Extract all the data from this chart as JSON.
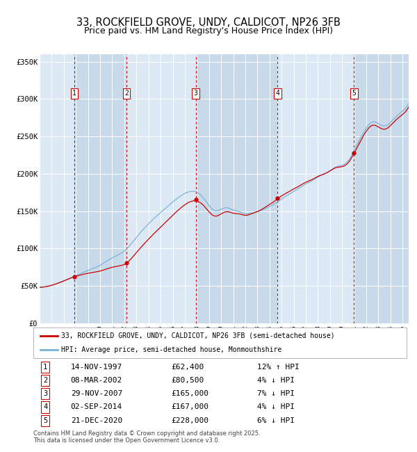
{
  "title": "33, ROCKFIELD GROVE, UNDY, CALDICOT, NP26 3FB",
  "subtitle": "Price paid vs. HM Land Registry's House Price Index (HPI)",
  "legend_red": "33, ROCKFIELD GROVE, UNDY, CALDICOT, NP26 3FB (semi-detached house)",
  "legend_blue": "HPI: Average price, semi-detached house, Monmouthshire",
  "footer": "Contains HM Land Registry data © Crown copyright and database right 2025.\nThis data is licensed under the Open Government Licence v3.0.",
  "transactions": [
    {
      "num": 1,
      "date": "14-NOV-1997",
      "price": 62400,
      "pct": "12%",
      "dir": "↑",
      "year": 1997.87
    },
    {
      "num": 2,
      "date": "08-MAR-2002",
      "price": 80500,
      "pct": "4%",
      "dir": "↓",
      "year": 2002.18
    },
    {
      "num": 3,
      "date": "29-NOV-2007",
      "price": 165000,
      "pct": "7%",
      "dir": "↓",
      "year": 2007.91
    },
    {
      "num": 4,
      "date": "02-SEP-2014",
      "price": 167000,
      "pct": "4%",
      "dir": "↓",
      "year": 2014.67
    },
    {
      "num": 5,
      "date": "21-DEC-2020",
      "price": 228000,
      "pct": "6%",
      "dir": "↓",
      "year": 2020.97
    }
  ],
  "xmin": 1995.0,
  "xmax": 2025.5,
  "ymin": 0,
  "ymax": 360000,
  "yticks": [
    0,
    50000,
    100000,
    150000,
    200000,
    250000,
    300000,
    350000
  ],
  "ytick_labels": [
    "£0",
    "£50K",
    "£100K",
    "£150K",
    "£200K",
    "£250K",
    "£300K",
    "£350K"
  ],
  "bg_color": "#dce9f5",
  "grid_color": "#ffffff",
  "red_color": "#cc0000",
  "blue_color": "#7ab0d4",
  "dashed_color": "#cc0000",
  "band_color_light": "#dce9f5",
  "band_color_dark": "#c8daea",
  "title_fontsize": 10.5,
  "subtitle_fontsize": 9,
  "tick_fontsize": 7.5,
  "hpi_anchors_t": [
    1995.0,
    1996.0,
    1997.0,
    1998.0,
    1999.0,
    2000.0,
    2001.0,
    2002.0,
    2003.0,
    2004.0,
    2005.0,
    2006.0,
    2007.0,
    2007.8,
    2008.5,
    2009.0,
    2009.5,
    2010.0,
    2010.5,
    2011.0,
    2011.5,
    2012.0,
    2012.5,
    2013.0,
    2013.5,
    2014.0,
    2014.5,
    2015.0,
    2015.5,
    2016.0,
    2016.5,
    2017.0,
    2017.5,
    2018.0,
    2018.5,
    2019.0,
    2019.5,
    2020.0,
    2020.5,
    2021.0,
    2021.5,
    2022.0,
    2022.5,
    2023.0,
    2023.5,
    2024.0,
    2024.5,
    2025.0,
    2025.3
  ],
  "hpi_anchors_v": [
    48000,
    51000,
    57000,
    64000,
    71000,
    78000,
    88000,
    97000,
    115000,
    133000,
    148000,
    162000,
    174000,
    177000,
    169000,
    158000,
    151000,
    153000,
    155000,
    152000,
    150000,
    147000,
    148000,
    150000,
    153000,
    157000,
    161000,
    167000,
    172000,
    177000,
    182000,
    187000,
    191000,
    196000,
    200000,
    205000,
    210000,
    212000,
    218000,
    232000,
    248000,
    262000,
    270000,
    268000,
    265000,
    270000,
    278000,
    285000,
    290000
  ]
}
